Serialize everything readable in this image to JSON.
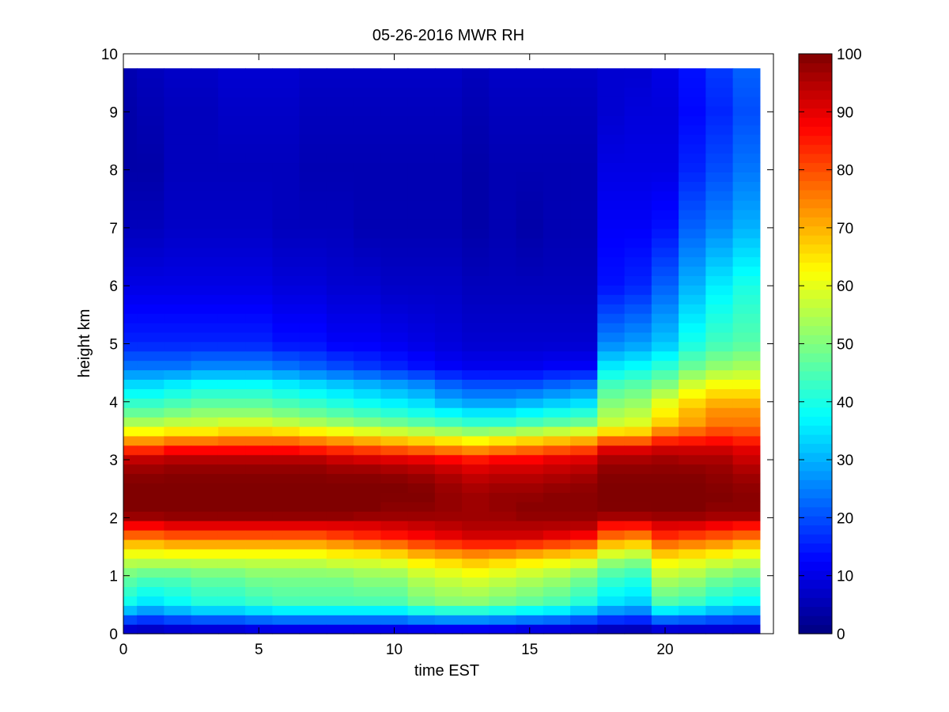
{
  "chart_data": {
    "type": "heatmap",
    "title": "05-26-2016 MWR RH",
    "xlabel": "time EST",
    "ylabel": "height km",
    "xlim": [
      0,
      24
    ],
    "ylim": [
      0,
      10
    ],
    "x_ticks": [
      0,
      5,
      10,
      15,
      20
    ],
    "y_ticks": [
      0,
      1,
      2,
      3,
      4,
      5,
      6,
      7,
      8,
      9,
      10
    ],
    "colorbar": {
      "min": 0,
      "max": 100,
      "ticks": [
        0,
        10,
        20,
        30,
        40,
        50,
        60,
        70,
        80,
        90,
        100
      ],
      "colormap": "jet"
    },
    "grid": false,
    "time_hours": [
      0,
      1,
      2,
      3,
      4,
      5,
      6,
      7,
      8,
      9,
      10,
      11,
      12,
      13,
      14,
      15,
      16,
      17,
      18,
      19,
      20,
      21,
      22,
      23
    ],
    "time_step_hours": 1,
    "data_extent": {
      "x_min": 0,
      "x_max": 23.5,
      "y_min": 0,
      "y_max": 9.75
    },
    "height_profile_km": [
      0.0,
      0.5,
      1.0,
      1.3,
      1.5,
      1.7,
      1.9,
      2.0,
      2.2,
      2.4,
      2.6,
      2.8,
      3.0,
      3.2,
      3.4,
      3.6,
      3.8,
      4.0,
      4.3,
      4.6,
      5.0,
      6.0,
      7.0,
      8.0,
      9.0,
      9.75
    ],
    "rh_percent": [
      [
        2,
        38,
        48,
        58,
        66,
        78,
        90,
        97,
        100,
        100,
        100,
        98,
        94,
        82,
        68,
        56,
        48,
        42,
        34,
        24,
        16,
        10,
        6,
        4,
        4,
        5
      ],
      [
        2,
        34,
        46,
        58,
        66,
        78,
        90,
        97,
        100,
        100,
        100,
        98,
        94,
        82,
        68,
        56,
        48,
        42,
        34,
        24,
        16,
        10,
        6,
        4,
        5,
        6
      ],
      [
        3,
        37,
        46,
        58,
        68,
        80,
        92,
        98,
        100,
        100,
        100,
        99,
        95,
        86,
        70,
        58,
        50,
        44,
        36,
        24,
        16,
        10,
        7,
        6,
        6,
        7
      ],
      [
        3,
        40,
        48,
        58,
        68,
        80,
        92,
        98,
        100,
        100,
        100,
        99,
        95,
        86,
        70,
        58,
        52,
        46,
        38,
        26,
        16,
        10,
        7,
        6,
        6,
        7
      ],
      [
        3,
        40,
        48,
        58,
        68,
        80,
        92,
        98,
        100,
        100,
        100,
        99,
        95,
        86,
        72,
        60,
        52,
        46,
        38,
        26,
        16,
        10,
        7,
        6,
        7,
        8
      ],
      [
        4,
        42,
        50,
        58,
        68,
        80,
        92,
        98,
        100,
        100,
        100,
        99,
        95,
        86,
        72,
        60,
        52,
        46,
        38,
        26,
        16,
        10,
        7,
        6,
        7,
        8
      ],
      [
        4,
        44,
        50,
        58,
        68,
        80,
        92,
        98,
        100,
        100,
        100,
        99,
        95,
        86,
        72,
        58,
        50,
        44,
        36,
        24,
        14,
        9,
        6,
        6,
        7,
        8
      ],
      [
        4,
        44,
        50,
        58,
        68,
        80,
        92,
        98,
        100,
        100,
        100,
        99,
        95,
        84,
        70,
        56,
        48,
        42,
        34,
        22,
        14,
        9,
        6,
        5,
        6,
        7
      ],
      [
        4,
        44,
        50,
        60,
        70,
        82,
        92,
        98,
        100,
        100,
        100,
        98,
        93,
        82,
        68,
        54,
        46,
        40,
        32,
        20,
        12,
        8,
        6,
        5,
        6,
        7
      ],
      [
        4,
        44,
        52,
        60,
        72,
        84,
        92,
        97,
        100,
        100,
        100,
        98,
        92,
        80,
        66,
        52,
        44,
        38,
        30,
        18,
        12,
        8,
        5,
        5,
        6,
        7
      ],
      [
        4,
        44,
        52,
        62,
        74,
        86,
        93,
        97,
        99,
        100,
        100,
        97,
        91,
        78,
        64,
        50,
        42,
        36,
        28,
        16,
        11,
        7,
        5,
        5,
        6,
        7
      ],
      [
        4,
        48,
        56,
        66,
        78,
        88,
        94,
        97,
        99,
        100,
        99,
        96,
        90,
        76,
        62,
        48,
        40,
        34,
        26,
        14,
        10,
        7,
        5,
        5,
        6,
        7
      ],
      [
        4,
        50,
        58,
        68,
        80,
        90,
        95,
        97,
        98,
        98,
        97,
        94,
        88,
        74,
        60,
        46,
        38,
        30,
        22,
        12,
        9,
        7,
        5,
        5,
        6,
        7
      ],
      [
        4,
        50,
        60,
        70,
        82,
        92,
        96,
        97,
        97,
        97,
        95,
        92,
        86,
        72,
        58,
        44,
        36,
        28,
        20,
        11,
        8,
        6,
        4,
        4,
        5,
        6
      ],
      [
        4,
        48,
        58,
        68,
        82,
        92,
        96,
        97,
        98,
        98,
        96,
        93,
        88,
        74,
        60,
        44,
        36,
        28,
        20,
        11,
        8,
        6,
        5,
        5,
        6,
        7
      ],
      [
        3,
        46,
        56,
        66,
        80,
        92,
        96,
        98,
        99,
        98,
        96,
        93,
        88,
        76,
        62,
        46,
        38,
        30,
        20,
        11,
        8,
        6,
        4,
        5,
        6,
        7
      ],
      [
        3,
        44,
        54,
        64,
        78,
        90,
        96,
        98,
        99,
        99,
        97,
        94,
        90,
        78,
        64,
        48,
        40,
        32,
        22,
        12,
        8,
        6,
        5,
        5,
        6,
        7
      ],
      [
        2,
        40,
        50,
        62,
        76,
        88,
        96,
        98,
        99,
        99,
        98,
        95,
        91,
        80,
        66,
        50,
        42,
        34,
        24,
        12,
        8,
        6,
        5,
        5,
        6,
        7
      ],
      [
        1,
        34,
        44,
        54,
        66,
        78,
        88,
        96,
        100,
        100,
        100,
        99,
        96,
        90,
        72,
        58,
        54,
        50,
        44,
        36,
        26,
        14,
        12,
        10,
        8,
        8
      ],
      [
        1,
        32,
        42,
        52,
        64,
        76,
        88,
        96,
        100,
        100,
        100,
        99,
        96,
        90,
        72,
        60,
        56,
        52,
        46,
        38,
        28,
        16,
        12,
        10,
        9,
        8
      ],
      [
        2,
        44,
        56,
        64,
        74,
        84,
        92,
        97,
        100,
        100,
        100,
        99,
        97,
        92,
        80,
        68,
        64,
        60,
        50,
        42,
        32,
        22,
        14,
        10,
        9,
        10
      ],
      [
        2,
        42,
        54,
        62,
        72,
        82,
        92,
        97,
        100,
        100,
        100,
        99,
        96,
        92,
        82,
        72,
        70,
        66,
        58,
        48,
        40,
        30,
        22,
        16,
        13,
        14
      ],
      [
        3,
        38,
        50,
        60,
        70,
        80,
        90,
        96,
        99,
        100,
        99,
        98,
        96,
        92,
        84,
        76,
        74,
        70,
        62,
        52,
        44,
        36,
        26,
        20,
        16,
        18
      ],
      [
        3,
        36,
        48,
        58,
        66,
        78,
        88,
        96,
        99,
        99,
        98,
        96,
        93,
        90,
        82,
        76,
        74,
        70,
        62,
        54,
        46,
        40,
        30,
        24,
        20,
        22
      ]
    ]
  }
}
